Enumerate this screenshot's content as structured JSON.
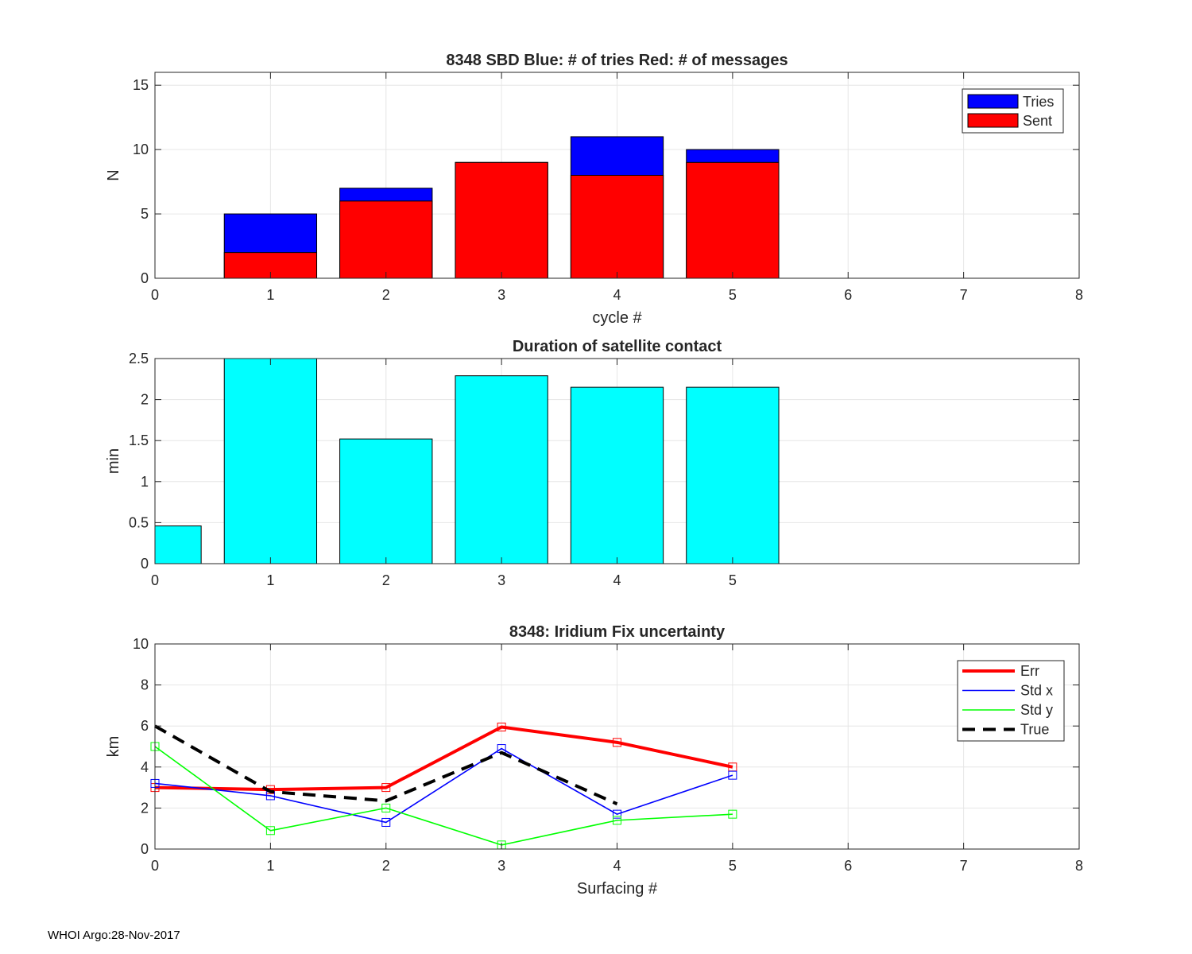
{
  "chart_data": [
    {
      "type": "bar",
      "title": "8348 SBD  Blue: # of tries   Red: # of messages",
      "xlabel": "cycle #",
      "ylabel": "N",
      "xlim": [
        0,
        8
      ],
      "ylim": [
        0,
        16
      ],
      "xticks": [
        0,
        1,
        2,
        3,
        4,
        5,
        6,
        7,
        8
      ],
      "yticks": [
        0,
        5,
        10,
        15
      ],
      "grid": true,
      "legend_position": "top-right",
      "x": [
        1,
        2,
        3,
        4,
        5
      ],
      "series": [
        {
          "name": "Tries",
          "color": "#0000ff",
          "values": [
            5,
            7,
            9,
            11,
            10
          ]
        },
        {
          "name": "Sent",
          "color": "#ff0000",
          "values": [
            2,
            6,
            9,
            8,
            9
          ]
        }
      ]
    },
    {
      "type": "bar",
      "title": "Duration of satellite contact",
      "xlabel": "",
      "ylabel": "min",
      "xlim": [
        0,
        8
      ],
      "ylim": [
        0,
        2.5
      ],
      "xticks": [
        0,
        1,
        2,
        3,
        4,
        5
      ],
      "yticks": [
        0,
        0.5,
        1,
        1.5,
        2,
        2.5
      ],
      "grid": true,
      "x": [
        0,
        1,
        2,
        3,
        4,
        5
      ],
      "series": [
        {
          "name": "Duration",
          "color": "#00ffff",
          "values": [
            0.46,
            2.5,
            1.52,
            2.29,
            2.15,
            2.15
          ]
        }
      ]
    },
    {
      "type": "line",
      "title": "8348: Iridium Fix uncertainty",
      "xlabel": "Surfacing #",
      "ylabel": "km",
      "xlim": [
        0,
        8
      ],
      "ylim": [
        0,
        10
      ],
      "xticks": [
        0,
        1,
        2,
        3,
        4,
        5,
        6,
        7,
        8
      ],
      "yticks": [
        0,
        2,
        4,
        6,
        8,
        10
      ],
      "grid": true,
      "legend_position": "top-right",
      "x": [
        0,
        1,
        2,
        3,
        4,
        5
      ],
      "series": [
        {
          "name": "Err",
          "color": "#ff0000",
          "style": "solid-thick",
          "values": [
            3.0,
            2.9,
            3.0,
            5.95,
            5.2,
            4.0
          ]
        },
        {
          "name": "Std x",
          "color": "#0000ff",
          "style": "solid",
          "values": [
            3.2,
            2.6,
            1.3,
            4.9,
            1.7,
            3.6
          ]
        },
        {
          "name": "Std y",
          "color": "#00ff00",
          "style": "solid",
          "values": [
            5.0,
            0.9,
            2.0,
            0.2,
            1.4,
            1.7
          ]
        },
        {
          "name": "True",
          "color": "#000000",
          "style": "dashed",
          "values": [
            6.0,
            2.8,
            2.35,
            4.7,
            2.2,
            null
          ]
        }
      ]
    }
  ],
  "footer": "WHOI Argo:28-Nov-2017"
}
